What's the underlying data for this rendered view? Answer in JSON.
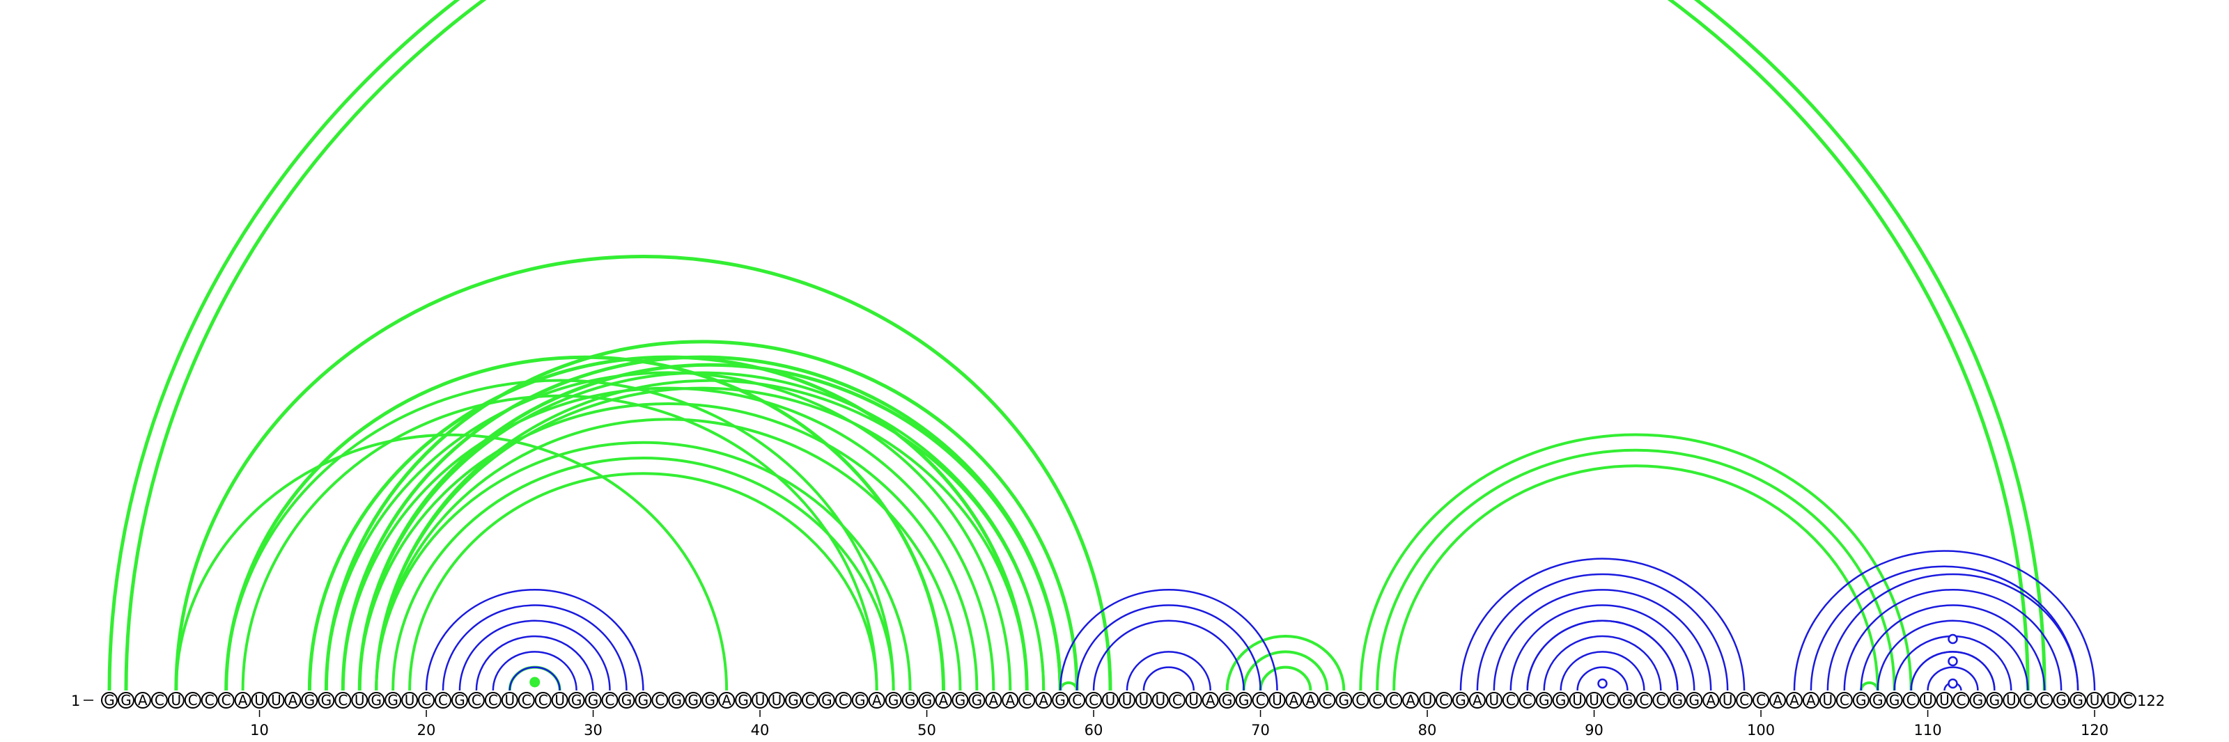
{
  "sequence": "GGACUCCCAUUAGGCUGGUCCGCCUCCUGGCGGCGGGAGUUGCGCGAGGGAGGAACAGCCUUUUCUAGGCUAACGCCCAUCGAUCCGGUUCGCCGGAUCCAAAUCGGGCUUCGGUCCGGUUC",
  "start_label": "1",
  "end_label": "122",
  "tick_labels": [
    "10",
    "20",
    "30",
    "40",
    "50",
    "60",
    "70",
    "80",
    "90",
    "100",
    "110",
    "120"
  ],
  "colors": {
    "green": "#33ee33",
    "blue": "#1a1adf",
    "text": "#000000"
  },
  "green_helices": [
    {
      "i": 1,
      "j": 117,
      "len": 2
    },
    {
      "i": 5,
      "j": 38,
      "len": 1
    },
    {
      "i": 5,
      "j": 61,
      "len": 1
    },
    {
      "i": 8,
      "j": 48,
      "len": 2
    },
    {
      "i": 8,
      "j": 51,
      "len": 1
    },
    {
      "i": 13,
      "j": 56,
      "len": 5
    },
    {
      "i": 14,
      "j": 59,
      "len": 4
    },
    {
      "i": 16,
      "j": 58,
      "len": 2
    },
    {
      "i": 17,
      "j": 49,
      "len": 3
    },
    {
      "i": 58,
      "j": 59,
      "len": 1
    },
    {
      "i": 68,
      "j": 75,
      "len": 3
    },
    {
      "i": 76,
      "j": 109,
      "len": 3
    },
    {
      "i": 106,
      "j": 107,
      "len": 1
    },
    {
      "i": 25,
      "j": 28,
      "len": 1
    }
  ],
  "blue_helices": [
    {
      "i": 20,
      "j": 33,
      "len": 6
    },
    {
      "i": 58,
      "j": 71,
      "len": 3
    },
    {
      "i": 62,
      "j": 67,
      "len": 2
    },
    {
      "i": 82,
      "j": 99,
      "len": 5
    },
    {
      "i": 86,
      "j": 95,
      "len": 4
    },
    {
      "i": 102,
      "j": 120,
      "len": 2
    },
    {
      "i": 104,
      "j": 119,
      "len": 3
    },
    {
      "i": 107,
      "j": 116,
      "len": 3
    },
    {
      "i": 109,
      "j": 114,
      "len": 3
    }
  ],
  "open_markers": [
    90.5,
    111.5,
    111.5,
    111.5
  ],
  "filled_markers": [
    26.5
  ]
}
